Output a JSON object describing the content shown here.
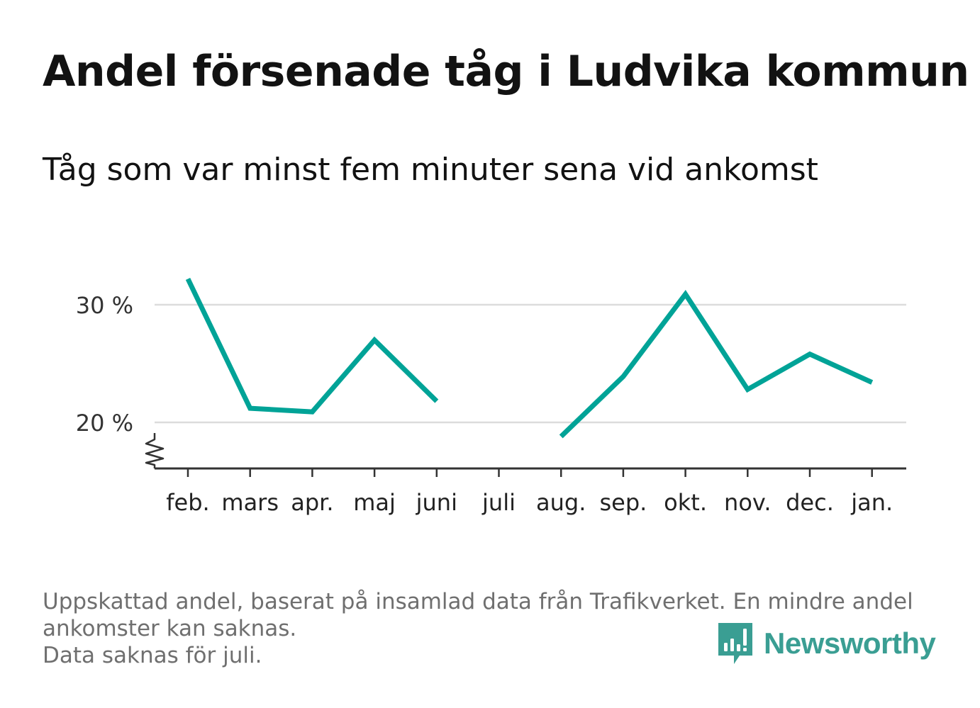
{
  "title": "Andel försenade tåg i Ludvika kommun",
  "subtitle": "Tåg som var minst fem minuter sena vid ankomst",
  "footer": {
    "line1": "Uppskattad andel, baserat på insamlad data från Trafikverket. En mindre andel",
    "line2": "ankomster kan saknas.",
    "line3": "Data saknas för juli."
  },
  "brand": {
    "name": "Newsworthy",
    "icon": "newsworthy-logo-icon"
  },
  "colors": {
    "line": "#00a397",
    "grid": "#dcdcdc",
    "axis": "#333333",
    "brand": "#3a9e93"
  },
  "chart_data": {
    "type": "line",
    "categories": [
      "feb.",
      "mars",
      "apr.",
      "maj",
      "juni",
      "juli",
      "aug.",
      "sep.",
      "okt.",
      "nov.",
      "dec.",
      "jan."
    ],
    "series": [
      {
        "values": [
          32.2,
          21.2,
          20.9,
          27.0,
          21.8,
          null,
          18.8,
          23.9,
          30.9,
          22.8,
          25.8,
          23.4
        ]
      }
    ],
    "yticks": [
      20,
      30
    ],
    "ytick_labels": [
      "20 %",
      "30 %"
    ],
    "ylim": [
      16,
      32.5
    ],
    "y_axis_break": true,
    "grid": "horizontal",
    "legend": "none"
  }
}
